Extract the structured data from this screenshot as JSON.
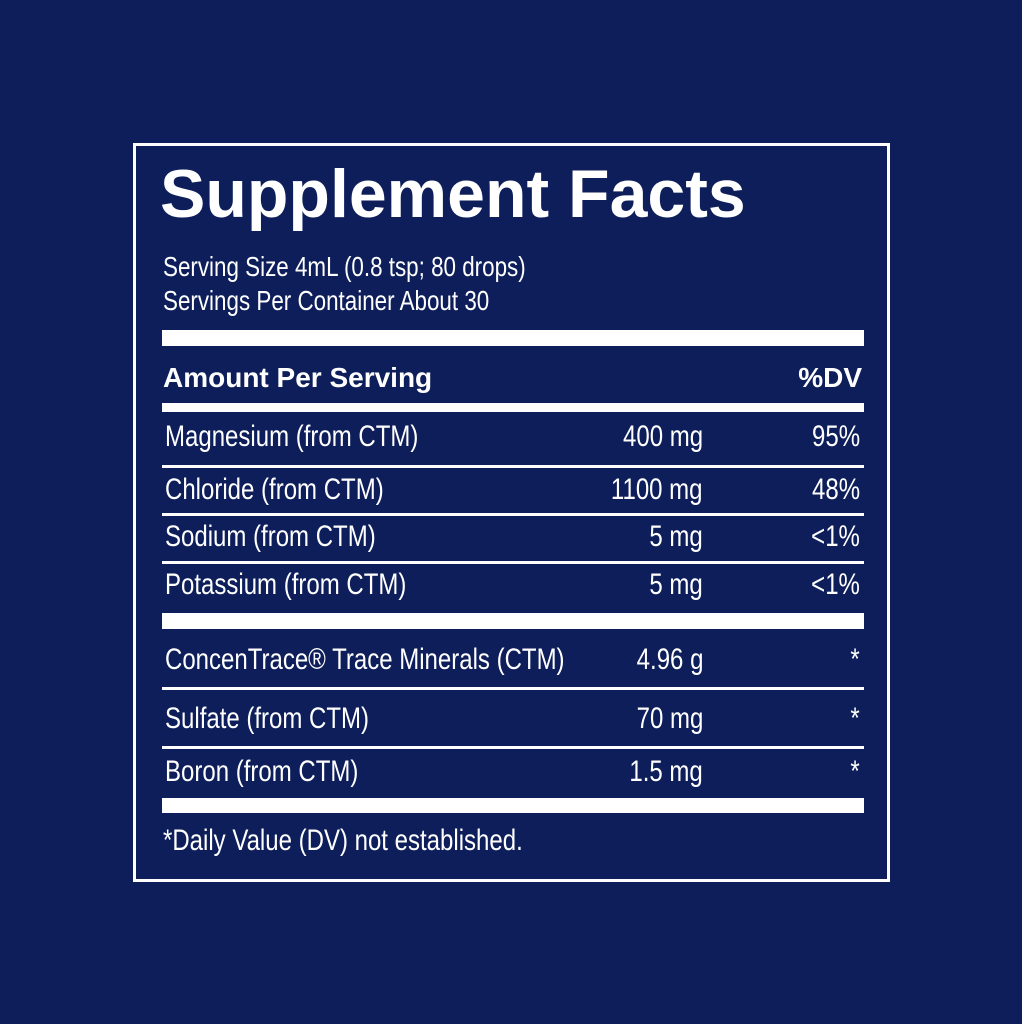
{
  "title": "Supplement Facts",
  "serving_size": "Serving Size 4mL (0.8 tsp; 80 drops)",
  "servings_per_container": "Servings Per Container About 30",
  "header": {
    "amount": "Amount Per Serving",
    "dv": "%DV"
  },
  "groups": [
    [
      {
        "name": "Magnesium (from CTM)",
        "amount": "400 mg",
        "dv": "95%"
      },
      {
        "name": "Chloride (from CTM)",
        "amount": "1100 mg",
        "dv": "48%"
      },
      {
        "name": "Sodium (from CTM)",
        "amount": "5 mg",
        "dv": "<1%"
      },
      {
        "name": "Potassium (from CTM)",
        "amount": "5 mg",
        "dv": "<1%"
      }
    ],
    [
      {
        "name": "ConcenTrace® Trace Minerals (CTM)",
        "amount": "4.96 g",
        "dv": "*"
      },
      {
        "name": "Sulfate (from CTM)",
        "amount": "70 mg",
        "dv": "*"
      },
      {
        "name": "Boron (from CTM)",
        "amount": "1.5 mg",
        "dv": "*"
      }
    ]
  ],
  "footnote": "*Daily Value (DV) not established."
}
